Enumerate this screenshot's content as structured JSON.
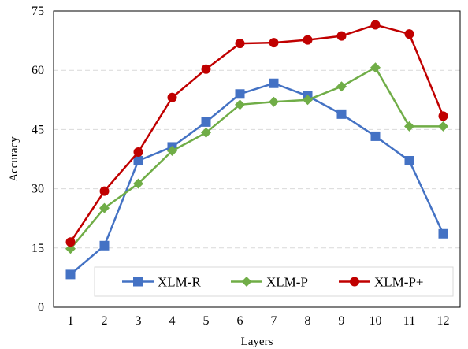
{
  "chart_data": {
    "type": "line",
    "xlabel": "Layers",
    "ylabel": "Accuracy",
    "x": [
      1,
      2,
      3,
      4,
      5,
      6,
      7,
      8,
      9,
      10,
      11,
      12
    ],
    "x_tick_labels": [
      "1",
      "2",
      "3",
      "4",
      "5",
      "6",
      "7",
      "8",
      "9",
      "10",
      "11",
      "12"
    ],
    "y_ticks": [
      0,
      15,
      30,
      45,
      60,
      75
    ],
    "y_tick_labels": [
      "0",
      "15",
      "30",
      "45",
      "60",
      "75"
    ],
    "ylim": [
      0,
      75
    ],
    "grid": "horizontal dashed",
    "legend_position": "bottom",
    "series": [
      {
        "name": "XLM-R",
        "color": "#4472C4",
        "marker": "square",
        "values": [
          8.3,
          15.6,
          37.1,
          40.6,
          46.9,
          54.0,
          56.7,
          53.5,
          48.9,
          43.3,
          37.1,
          18.6
        ]
      },
      {
        "name": "XLM-P",
        "color": "#70AD47",
        "marker": "diamond",
        "values": [
          14.8,
          25.1,
          31.3,
          39.6,
          44.2,
          51.3,
          52.0,
          52.5,
          55.9,
          60.7,
          45.8,
          45.8
        ]
      },
      {
        "name": "XLM-P+",
        "color": "#C00000",
        "marker": "circle",
        "values": [
          16.5,
          29.4,
          39.3,
          53.1,
          60.3,
          66.8,
          67.0,
          67.7,
          68.7,
          71.5,
          69.2,
          48.4
        ]
      }
    ]
  }
}
